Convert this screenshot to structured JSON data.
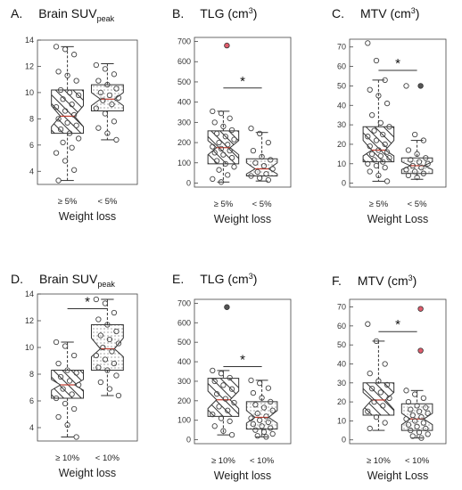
{
  "panels": [
    {
      "letter": "A.",
      "title_main": "Brain SUV",
      "title_sub": "peak",
      "title_tail": "",
      "xlabel": "Weight loss",
      "chart_data": {
        "type": "box",
        "title": "Brain SUVpeak",
        "xlabel": "Weight loss",
        "ylim": [
          3,
          14
        ],
        "yticks": [
          4,
          6,
          8,
          10,
          12,
          14
        ],
        "categories": [
          "≥ 5%",
          "< 5%"
        ],
        "boxes": [
          {
            "name": "≥ 5%",
            "pattern": "hatch",
            "q1": 6.9,
            "median": 8.2,
            "q3": 10.2,
            "notch_low": 7.4,
            "notch_high": 9.0,
            "whisker_low": 3.3,
            "whisker_high": 13.5,
            "points": [
              13.5,
              13.3,
              12.9,
              11.6,
              11.3,
              10.9,
              10.2,
              10.0,
              9.8,
              9.5,
              9.1,
              8.9,
              8.6,
              8.3,
              8.0,
              7.7,
              7.5,
              7.2,
              6.9,
              6.5,
              6.2,
              5.8,
              5.4,
              4.8,
              4.1,
              3.3
            ]
          },
          {
            "name": "< 5%",
            "pattern": "dots",
            "q1": 8.6,
            "median": 9.5,
            "q3": 10.6,
            "notch_low": 9.0,
            "notch_high": 10.0,
            "whisker_low": 6.4,
            "whisker_high": 12.2,
            "points": [
              12.1,
              11.8,
              11.4,
              10.9,
              10.6,
              10.3,
              10.0,
              9.8,
              9.6,
              9.4,
              9.1,
              8.8,
              8.4,
              7.8,
              7.3,
              6.9,
              6.4
            ]
          }
        ],
        "significance": null
      }
    },
    {
      "letter": "B.",
      "title_main": "TLG (cm",
      "title_sup": "3",
      "title_tail": ")",
      "xlabel": "Weight loss",
      "chart_data": {
        "type": "box",
        "title": "TLG (cm3)",
        "xlabel": "Weight loss",
        "ylim": [
          -20,
          720
        ],
        "yticks": [
          0,
          100,
          200,
          300,
          400,
          500,
          600,
          700
        ],
        "categories": [
          "≥ 5%",
          "< 5%"
        ],
        "boxes": [
          {
            "name": "≥ 5%",
            "pattern": "hatch",
            "q1": 95,
            "median": 175,
            "q3": 258,
            "notch_low": 140,
            "notch_high": 210,
            "whisker_low": 5,
            "whisker_high": 355,
            "points": [
              355,
              345,
              320,
              300,
              280,
              262,
              245,
              230,
              215,
              200,
              190,
              180,
              170,
              160,
              150,
              140,
              125,
              110,
              95,
              80,
              65,
              40,
              20,
              5
            ]
          },
          {
            "name": "< 5%",
            "pattern": "dots",
            "q1": 35,
            "median": 70,
            "q3": 120,
            "notch_low": 45,
            "notch_high": 100,
            "whisker_low": 10,
            "whisker_high": 250,
            "points": [
              270,
              245,
              200,
              160,
              130,
              115,
              100,
              85,
              70,
              55,
              45,
              35,
              25,
              15
            ]
          }
        ],
        "outliers": [
          {
            "box": 0,
            "value": 680,
            "color": "#e05c6c"
          }
        ],
        "significance": {
          "from": 0,
          "to": 1,
          "label": "*",
          "value": 470
        }
      }
    },
    {
      "letter": "C.",
      "title_main": "MTV (cm",
      "title_sup": "3",
      "title_tail": ")",
      "xlabel": "Weight Loss",
      "chart_data": {
        "type": "box",
        "title": "MTV (cm3)",
        "xlabel": "Weight Loss",
        "ylim": [
          -2,
          74
        ],
        "yticks": [
          0,
          10,
          20,
          30,
          40,
          50,
          60,
          70
        ],
        "categories": [
          "≥ 5%",
          "< 5%"
        ],
        "boxes": [
          {
            "name": "≥ 5%",
            "pattern": "hatch",
            "q1": 11,
            "median": 17,
            "q3": 29,
            "notch_low": 14,
            "notch_high": 22,
            "whisker_low": 1,
            "whisker_high": 53,
            "points": [
              72,
              63,
              53,
              48,
              45,
              41,
              35,
              31,
              29,
              27,
              25,
              24,
              22,
              20,
              19,
              17,
              16,
              15,
              14,
              13,
              12,
              11,
              10,
              9,
              8,
              6,
              4,
              1
            ]
          },
          {
            "name": "< 5%",
            "pattern": "dots",
            "q1": 5,
            "median": 9,
            "q3": 13,
            "notch_low": 7,
            "notch_high": 11,
            "whisker_low": 2,
            "whisker_high": 22,
            "points": [
              50,
              25,
              22,
              17,
              15,
              13,
              12,
              11,
              10,
              9,
              8,
              7,
              6,
              5,
              4,
              3
            ]
          }
        ],
        "outliers": [
          {
            "box": 1,
            "value": 50,
            "color": "#555555"
          }
        ],
        "significance": {
          "from": 0,
          "to": 1,
          "label": "*",
          "value": 58
        }
      }
    },
    {
      "letter": "D.",
      "title_main": "Brain SUV",
      "title_sub": "peak",
      "title_tail": "",
      "xlabel": "Weight loss",
      "chart_data": {
        "type": "box",
        "title": "Brain SUVpeak",
        "xlabel": "Weight loss",
        "ylim": [
          3,
          14
        ],
        "yticks": [
          4,
          6,
          8,
          10,
          12,
          14
        ],
        "categories": [
          "≥ 10%",
          "< 10%"
        ],
        "boxes": [
          {
            "name": "≥ 10%",
            "pattern": "hatch",
            "q1": 6.2,
            "median": 7.2,
            "q3": 8.3,
            "notch_low": 6.8,
            "notch_high": 7.6,
            "whisker_low": 3.3,
            "whisker_high": 10.4,
            "points": [
              10.4,
              10.1,
              9.4,
              8.8,
              8.3,
              8.1,
              7.8,
              7.5,
              7.2,
              6.9,
              6.5,
              6.2,
              5.8,
              5.4,
              4.8,
              4.2,
              3.3
            ]
          },
          {
            "name": "< 10%",
            "pattern": "dots",
            "q1": 8.3,
            "median": 9.9,
            "q3": 11.7,
            "notch_low": 9.3,
            "notch_high": 10.7,
            "whisker_low": 6.4,
            "whisker_high": 13.6,
            "points": [
              13.6,
              13.3,
              12.6,
              12.1,
              11.7,
              11.2,
              10.9,
              10.6,
              10.3,
              10.0,
              9.7,
              9.4,
              9.1,
              8.8,
              8.5,
              8.3,
              7.9,
              7.4,
              6.9,
              6.4
            ]
          }
        ],
        "significance": {
          "from": 0,
          "to": 1,
          "label": "*",
          "value": 12.9
        }
      }
    },
    {
      "letter": "E.",
      "title_main": "TLG (cm",
      "title_sup": "3",
      "title_tail": ")",
      "xlabel": "Weight loss",
      "chart_data": {
        "type": "box",
        "title": "TLG (cm3)",
        "xlabel": "Weight loss",
        "ylim": [
          -20,
          720
        ],
        "yticks": [
          0,
          100,
          200,
          300,
          400,
          500,
          600,
          700
        ],
        "categories": [
          "≥ 10%",
          "< 10%"
        ],
        "boxes": [
          {
            "name": "≥ 10%",
            "pattern": "hatch",
            "q1": 120,
            "median": 205,
            "q3": 315,
            "notch_low": 160,
            "notch_high": 250,
            "whisker_low": 25,
            "whisker_high": 355,
            "points": [
              355,
              340,
              318,
              300,
              280,
              260,
              235,
              210,
              190,
              170,
              150,
              130,
              110,
              95,
              70,
              45,
              25
            ]
          },
          {
            "name": "< 10%",
            "pattern": "dots",
            "q1": 55,
            "median": 115,
            "q3": 195,
            "notch_low": 85,
            "notch_high": 150,
            "whisker_low": 15,
            "whisker_high": 305,
            "points": [
              305,
              290,
              265,
              240,
              215,
              195,
              180,
              165,
              150,
              135,
              120,
              110,
              100,
              90,
              80,
              70,
              60,
              50,
              40,
              30,
              20,
              15
            ]
          }
        ],
        "outliers": [
          {
            "box": 0,
            "value": 680,
            "color": "#555555"
          }
        ],
        "significance": {
          "from": 0,
          "to": 1,
          "label": "*",
          "value": 375
        }
      }
    },
    {
      "letter": "F.",
      "title_main": "MTV (cm",
      "title_sup": "3",
      "title_tail": ")",
      "xlabel": "Weight Loss",
      "chart_data": {
        "type": "box",
        "title": "MTV (cm3)",
        "xlabel": "Weight Loss",
        "ylim": [
          -2,
          74
        ],
        "yticks": [
          0,
          10,
          20,
          30,
          40,
          50,
          60,
          70
        ],
        "categories": [
          "≥ 10%",
          "< 10%"
        ],
        "boxes": [
          {
            "name": "≥ 10%",
            "pattern": "hatch",
            "q1": 13,
            "median": 21,
            "q3": 30,
            "notch_low": 16,
            "notch_high": 25,
            "whisker_low": 5,
            "whisker_high": 52,
            "points": [
              61,
              52,
              40,
              35,
              31,
              29,
              27,
              25,
              22,
              20,
              18,
              15,
              12,
              9,
              6
            ]
          },
          {
            "name": "< 10%",
            "pattern": "dots",
            "q1": 5,
            "median": 11,
            "q3": 19,
            "notch_low": 8,
            "notch_high": 14,
            "whisker_low": 1,
            "whisker_high": 26,
            "points": [
              26,
              24,
              22,
              20,
              18,
              17,
              16,
              15,
              14,
              13,
              12,
              11,
              10,
              9,
              8,
              7,
              6,
              5,
              4,
              3,
              2,
              1
            ]
          }
        ],
        "outliers": [
          {
            "box": 1,
            "value": 69,
            "color": "#e05c6c"
          },
          {
            "box": 1,
            "value": 47,
            "color": "#e05c6c"
          }
        ],
        "significance": {
          "from": 0,
          "to": 1,
          "label": "*",
          "value": 57
        }
      }
    }
  ]
}
